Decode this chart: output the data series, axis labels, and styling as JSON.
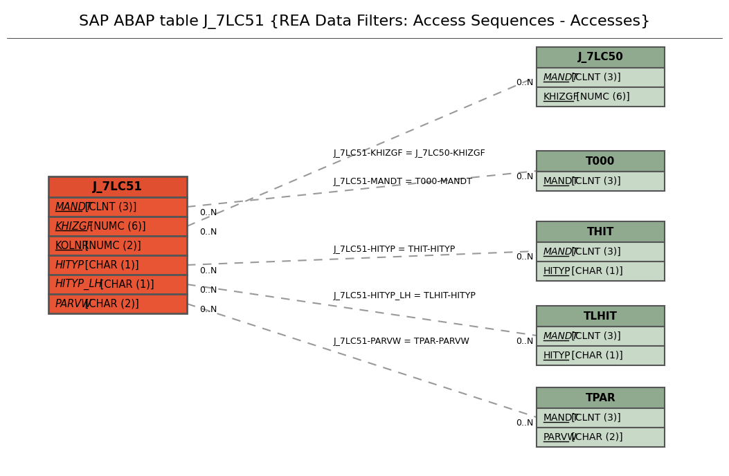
{
  "title": "SAP ABAP table J_7LC51 {REA Data Filters: Access Sequences - Accesses}",
  "title_fontsize": 16,
  "bg_color": "#ffffff",
  "main_table": {
    "name": "J_7LC51",
    "header_color": "#e05030",
    "row_color": "#e85535",
    "border_color": "#555555",
    "fields": [
      {
        "name": "MANDT",
        "type": " [CLNT (3)]",
        "italic": true,
        "underline": true
      },
      {
        "name": "KHIZGF",
        "type": " [NUMC (6)]",
        "italic": true,
        "underline": true
      },
      {
        "name": "KOLNR",
        "type": " [NUMC (2)]",
        "italic": false,
        "underline": true
      },
      {
        "name": "HITYP",
        "type": " [CHAR (1)]",
        "italic": true,
        "underline": false
      },
      {
        "name": "HITYP_LH",
        "type": " [CHAR (1)]",
        "italic": true,
        "underline": false
      },
      {
        "name": "PARVW",
        "type": " [CHAR (2)]",
        "italic": true,
        "underline": false
      }
    ]
  },
  "related_tables": [
    {
      "name": "J_7LC50",
      "header_color": "#8faa8f",
      "row_color": "#c8d9c8",
      "border_color": "#555555",
      "fields": [
        {
          "name": "MANDT",
          "type": " [CLNT (3)]",
          "italic": true,
          "underline": true
        },
        {
          "name": "KHIZGF",
          "type": " [NUMC (6)]",
          "italic": false,
          "underline": true
        }
      ],
      "relation_label": "J_7LC51-KHIZGF = J_7LC50-KHIZGF",
      "source_field": "KHIZGF",
      "left_cardinality": "0..N",
      "right_cardinality": "0..N"
    },
    {
      "name": "T000",
      "header_color": "#8faa8f",
      "row_color": "#c8d9c8",
      "border_color": "#555555",
      "fields": [
        {
          "name": "MANDT",
          "type": " [CLNT (3)]",
          "italic": false,
          "underline": true
        }
      ],
      "relation_label": "J_7LC51-MANDT = T000-MANDT",
      "source_field": "MANDT",
      "left_cardinality": "0..N",
      "right_cardinality": "0..N"
    },
    {
      "name": "THIT",
      "header_color": "#8faa8f",
      "row_color": "#c8d9c8",
      "border_color": "#555555",
      "fields": [
        {
          "name": "MANDT",
          "type": " [CLNT (3)]",
          "italic": true,
          "underline": true
        },
        {
          "name": "HITYP",
          "type": " [CHAR (1)]",
          "italic": false,
          "underline": true
        }
      ],
      "relation_label": "J_7LC51-HITYP = THIT-HITYP",
      "source_field": "HITYP",
      "left_cardinality": "0..N",
      "right_cardinality": "0..N"
    },
    {
      "name": "TLHIT",
      "header_color": "#8faa8f",
      "row_color": "#c8d9c8",
      "border_color": "#555555",
      "fields": [
        {
          "name": "MANDT",
          "type": " [CLNT (3)]",
          "italic": true,
          "underline": true
        },
        {
          "name": "HITYP",
          "type": " [CHAR (1)]",
          "italic": false,
          "underline": true
        }
      ],
      "relation_label": "J_7LC51-HITYP_LH = TLHIT-HITYP",
      "source_field": "HITYP_LH",
      "left_cardinality": "0..N",
      "right_cardinality": "0..N"
    },
    {
      "name": "TPAR",
      "header_color": "#8faa8f",
      "row_color": "#c8d9c8",
      "border_color": "#555555",
      "fields": [
        {
          "name": "MANDT",
          "type": " [CLNT (3)]",
          "italic": false,
          "underline": true
        },
        {
          "name": "PARVW",
          "type": " [CHAR (2)]",
          "italic": false,
          "underline": true
        }
      ],
      "relation_label": "J_7LC51-PARVW = TPAR-PARVW",
      "source_field": "PARVW",
      "left_cardinality": "0..N",
      "right_cardinality": "0..N"
    }
  ]
}
